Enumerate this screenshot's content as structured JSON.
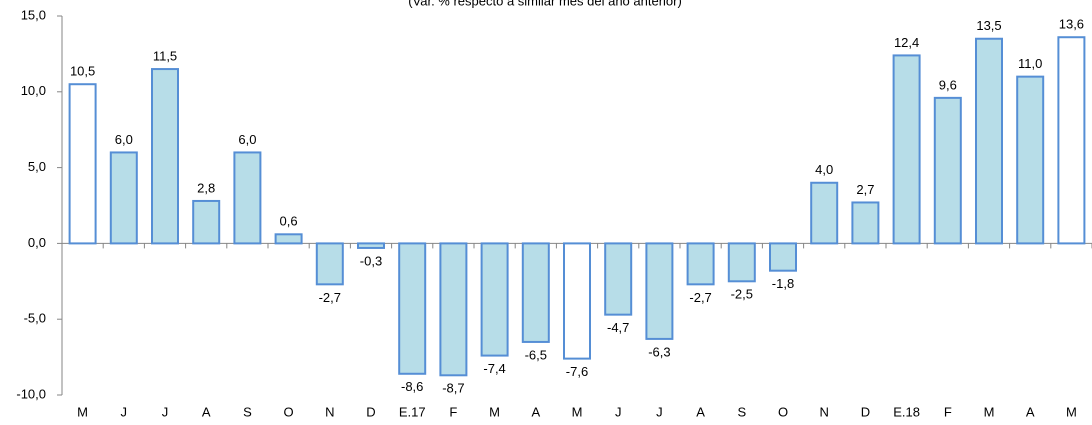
{
  "chart_data": {
    "type": "bar",
    "subtitle": "(Var. % respecto a similar mes del año anterior)",
    "categories": [
      "M",
      "J",
      "J",
      "A",
      "S",
      "O",
      "N",
      "D",
      "E.17",
      "F",
      "M",
      "A",
      "M",
      "J",
      "J",
      "A",
      "S",
      "O",
      "N",
      "D",
      "E.18",
      "F",
      "M",
      "A",
      "M"
    ],
    "values": [
      10.5,
      6.0,
      11.5,
      2.8,
      6.0,
      0.6,
      -2.7,
      -0.3,
      -8.6,
      -8.7,
      -7.4,
      -6.5,
      -7.6,
      -4.7,
      -6.3,
      -2.7,
      -2.5,
      -1.8,
      4.0,
      2.7,
      12.4,
      9.6,
      13.5,
      11.0,
      13.6
    ],
    "value_labels": [
      "10,5",
      "6,0",
      "11,5",
      "2,8",
      "6,0",
      "0,6",
      "-2,7",
      "-0,3",
      "-8,6",
      "-8,7",
      "-7,4",
      "-6,5",
      "-7,6",
      "-4,7",
      "-6,3",
      "-2,7",
      "-2,5",
      "-1,8",
      "4,0",
      "2,7",
      "12,4",
      "9,6",
      "13,5",
      "11,0",
      "13,6"
    ],
    "colors": [
      "#ffffff",
      "#b7dde8",
      "#b7dde8",
      "#b7dde8",
      "#b7dde8",
      "#b7dde8",
      "#b7dde8",
      "#b7dde8",
      "#b7dde8",
      "#b7dde8",
      "#b7dde8",
      "#b7dde8",
      "#ffffff",
      "#b7dde8",
      "#b7dde8",
      "#b7dde8",
      "#b7dde8",
      "#b7dde8",
      "#b7dde8",
      "#b7dde8",
      "#b7dde8",
      "#b7dde8",
      "#b7dde8",
      "#b7dde8",
      "#ffffff"
    ],
    "border_color": "#558ed5",
    "ylim": [
      -10,
      15
    ],
    "yticks": [
      {
        "value": -10,
        "label": "-10,0"
      },
      {
        "value": -5,
        "label": "-5,0"
      },
      {
        "value": 0,
        "label": "0,0"
      },
      {
        "value": 5,
        "label": "5,0"
      },
      {
        "value": 10,
        "label": "10,0"
      },
      {
        "value": 15,
        "label": "15,0"
      }
    ],
    "grid": false
  }
}
